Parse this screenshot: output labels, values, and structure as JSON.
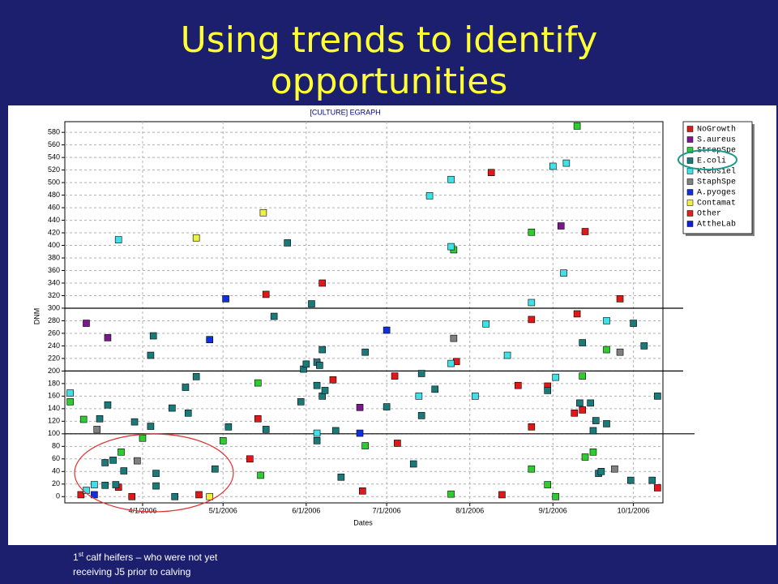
{
  "slide": {
    "title_lines": [
      "Using trends to identify",
      "opportunities"
    ],
    "footnote": {
      "number": "1",
      "superscript": "st",
      "line1": " calf heifers – who were not yet",
      "line2": "receiving J5 prior to calving"
    }
  },
  "chart_data": {
    "type": "scatter",
    "title": "[CULTURE] EGRAPH",
    "x_label": "Dates",
    "y_label": "DNM",
    "xlim": [
      "3/3/2006",
      "10/12/2006"
    ],
    "xticks": [
      "4/1/2006",
      "5/1/2006",
      "6/1/2006",
      "7/1/2006",
      "8/1/2006",
      "9/1/2006",
      "10/1/2006"
    ],
    "ylim": [
      -10,
      597
    ],
    "yticks": [
      0,
      20,
      40,
      60,
      80,
      100,
      120,
      140,
      160,
      180,
      200,
      220,
      240,
      260,
      280,
      300,
      320,
      340,
      360,
      380,
      400,
      420,
      440,
      460,
      480,
      500,
      520,
      540,
      560,
      580
    ],
    "grid": true,
    "legend": "top-right",
    "reference_lines": [
      300,
      200,
      100
    ],
    "series": [
      {
        "name": "NoGrowth",
        "color": "#e01818",
        "x": [
          "3/9/2006",
          "3/23/2006",
          "3/28/2006",
          "4/22/2006",
          "5/14/2006",
          "5/17/2006",
          "5/11/2006",
          "6/7/2006",
          "6/11/2006",
          "6/22/2006",
          "7/4/2006",
          "7/5/2006",
          "7/27/2006",
          "8/9/2006",
          "8/13/2006",
          "8/19/2006",
          "8/24/2006",
          "8/24/2006",
          "8/30/2006",
          "9/10/2006",
          "9/9/2006",
          "9/12/2006",
          "9/13/2006",
          "9/26/2006",
          "10/10/2006"
        ],
        "values": [
          3,
          15,
          0,
          3,
          124,
          322,
          60,
          340,
          186,
          9,
          192,
          85,
          215,
          516,
          3,
          177,
          282,
          111,
          176,
          291,
          133,
          138,
          422,
          315,
          14
        ]
      },
      {
        "name": "S.aureus",
        "color": "#7a1a8a",
        "x": [
          "3/11/2006",
          "3/19/2006",
          "6/21/2006",
          "9/4/2006"
        ],
        "values": [
          276,
          253,
          142,
          431
        ]
      },
      {
        "name": "StrepSpe",
        "color": "#2ecc2e",
        "x": [
          "3/5/2006",
          "3/10/2006",
          "3/24/2006",
          "4/1/2006",
          "5/1/2006",
          "5/14/2006",
          "5/15/2006",
          "6/23/2006",
          "7/25/2006",
          "7/26/2006",
          "8/24/2006",
          "8/24/2006",
          "8/30/2006",
          "9/2/2006",
          "9/10/2006",
          "9/12/2006",
          "9/13/2006",
          "9/16/2006",
          "9/21/2006"
        ],
        "values": [
          151,
          123,
          71,
          93,
          89,
          181,
          34,
          81,
          4,
          393,
          421,
          44,
          19,
          0,
          590,
          192,
          63,
          71,
          234
        ]
      },
      {
        "name": "E.coli",
        "color": "#1a7a7a",
        "x": [
          "3/16/2006",
          "3/19/2006",
          "3/18/2006",
          "3/21/2006",
          "3/25/2006",
          "3/18/2006",
          "3/22/2006",
          "3/29/2006",
          "4/4/2006",
          "4/5/2006",
          "4/4/2006",
          "4/6/2006",
          "4/6/2006",
          "4/12/2006",
          "4/13/2006",
          "4/17/2006",
          "4/18/2006",
          "4/21/2006",
          "4/28/2006",
          "5/3/2006",
          "5/17/2006",
          "5/20/2006",
          "5/25/2006",
          "5/30/2006",
          "5/31/2006",
          "6/1/2006",
          "6/3/2006",
          "6/5/2006",
          "6/5/2006",
          "6/5/2006",
          "6/6/2006",
          "6/7/2006",
          "6/7/2006",
          "6/8/2006",
          "6/12/2006",
          "6/14/2006",
          "6/23/2006",
          "7/1/2006",
          "7/11/2006",
          "7/14/2006",
          "7/14/2006",
          "7/19/2006",
          "8/30/2006",
          "9/12/2006",
          "9/11/2006",
          "9/15/2006",
          "9/16/2006",
          "9/17/2006",
          "9/18/2006",
          "9/19/2006",
          "9/21/2006",
          "9/30/2006",
          "10/1/2006",
          "10/5/2006",
          "10/8/2006",
          "10/10/2006"
        ],
        "values": [
          124,
          146,
          54,
          58,
          41,
          18,
          19,
          119,
          112,
          256,
          225,
          37,
          17,
          141,
          0,
          174,
          133,
          191,
          44,
          111,
          107,
          287,
          404,
          151,
          203,
          211,
          307,
          177,
          214,
          89,
          209,
          234,
          160,
          169,
          105,
          31,
          230,
          143,
          52,
          196,
          129,
          171,
          169,
          245,
          149,
          149,
          105,
          121,
          37,
          40,
          116,
          26,
          276,
          240,
          26,
          160
        ]
      },
      {
        "name": "Klebsiel",
        "color": "#40e0e8",
        "x": [
          "3/5/2006",
          "3/11/2006",
          "3/14/2006",
          "3/23/2006",
          "6/5/2006",
          "7/13/2006",
          "7/17/2006",
          "7/25/2006",
          "7/25/2006",
          "7/25/2006",
          "8/3/2006",
          "8/7/2006",
          "8/15/2006",
          "8/24/2006",
          "9/1/2006",
          "9/2/2006",
          "9/6/2006",
          "9/5/2006",
          "9/21/2006"
        ],
        "values": [
          165,
          10,
          19,
          409,
          101,
          160,
          479,
          505,
          398,
          212,
          160,
          275,
          225,
          309,
          526,
          190,
          531,
          356,
          280
        ]
      },
      {
        "name": "StaphSpe",
        "color": "#808080",
        "x": [
          "3/15/2006",
          "3/30/2006",
          "7/26/2006",
          "9/24/2006",
          "9/26/2006"
        ],
        "values": [
          107,
          57,
          252,
          44,
          230
        ]
      },
      {
        "name": "A.pyoges",
        "color": "#1030e0",
        "x": [
          "3/14/2006",
          "4/26/2006",
          "5/2/2006",
          "6/21/2006",
          "7/1/2006"
        ],
        "values": [
          3,
          250,
          315,
          101,
          265
        ]
      },
      {
        "name": "Contamat",
        "color": "#f0f040",
        "x": [
          "4/21/2006",
          "5/16/2006",
          "4/26/2006"
        ],
        "values": [
          412,
          452,
          0
        ]
      },
      {
        "name": "Other",
        "color": "#e02020",
        "x": [],
        "values": []
      },
      {
        "name": "AttheLab",
        "color": "#1020d0",
        "x": [],
        "values": []
      }
    ]
  }
}
